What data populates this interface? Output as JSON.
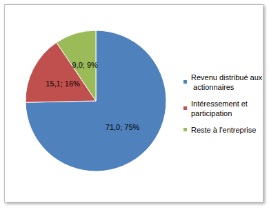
{
  "chart_data": {
    "type": "pie",
    "categories": [
      "Revenu distribué aux actionnaires",
      "Intéressement et participation",
      "Reste à l'entreprise"
    ],
    "values": [
      71.0,
      15.1,
      9.0
    ],
    "value_labels": [
      "71,0; 75%",
      "15,1; 16%",
      "9,0; 9%"
    ],
    "colors": [
      "#4f81bd",
      "#c0504d",
      "#9bbb59"
    ],
    "data_labels": true,
    "legend": "right"
  }
}
